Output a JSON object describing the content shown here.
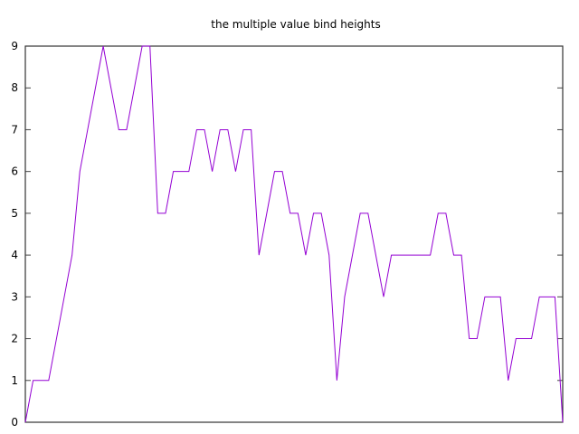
{
  "chart_data": {
    "type": "line",
    "title": "the multiple value bind heights",
    "xlabel": "",
    "ylabel": "",
    "xlim": [
      0,
      69
    ],
    "ylim": [
      0,
      9
    ],
    "yticks": [
      0,
      1,
      2,
      3,
      4,
      5,
      6,
      7,
      8,
      9
    ],
    "grid": false,
    "legend": "none",
    "line_color": "#9400d3",
    "series": [
      {
        "x": [
          0,
          1,
          2,
          3,
          4,
          5,
          6,
          7,
          8,
          9,
          10,
          11,
          12,
          13,
          14,
          15,
          16,
          17,
          18,
          19,
          20,
          21,
          22,
          23,
          24,
          25,
          26,
          27,
          28,
          29,
          30,
          31,
          32,
          33,
          34,
          35,
          36,
          37,
          38,
          39,
          40,
          41,
          42,
          43,
          44,
          45,
          46,
          47,
          48,
          49,
          50,
          51,
          52,
          53,
          54,
          55,
          56,
          57,
          58,
          59,
          60,
          61,
          62,
          63,
          64,
          65,
          66,
          67,
          68,
          69
        ],
        "values": [
          0,
          1,
          1,
          1,
          2,
          3,
          4,
          6,
          7,
          8,
          9,
          8,
          7,
          7,
          8,
          9,
          9,
          5,
          5,
          6,
          6,
          6,
          7,
          7,
          6,
          7,
          7,
          6,
          7,
          7,
          4,
          5,
          6,
          6,
          5,
          5,
          4,
          5,
          5,
          4,
          1,
          3,
          4,
          5,
          5,
          4,
          3,
          4,
          4,
          4,
          4,
          4,
          4,
          5,
          5,
          4,
          4,
          2,
          2,
          3,
          3,
          3,
          1,
          2,
          2,
          2,
          3,
          3,
          3,
          0
        ]
      }
    ]
  }
}
